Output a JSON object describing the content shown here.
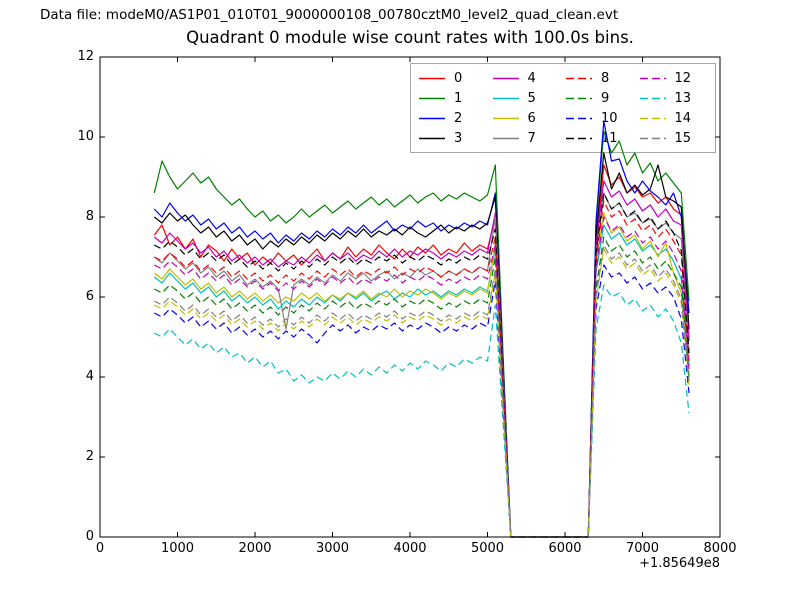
{
  "header": {
    "label": "Data file: modeM0/AS1P01_010T01_9000000108_00780cztM0_level2_quad_clean.evt"
  },
  "chart_data": {
    "type": "line",
    "title": "Quadrant 0 module wise count rates with 100.0s bins.",
    "xlabel": "",
    "ylabel": "",
    "x_offset_label": "+1.85649e8",
    "xlim": [
      0,
      8000
    ],
    "ylim": [
      0,
      12
    ],
    "x_ticks": [
      0,
      1000,
      2000,
      3000,
      4000,
      5000,
      6000,
      7000,
      8000
    ],
    "y_ticks": [
      0,
      2,
      4,
      6,
      8,
      10,
      12
    ],
    "grid": false,
    "legend_position": "upper right, 4 columns",
    "x_start": 700,
    "x_step": 100,
    "series": [
      {
        "name": "0",
        "color": "#ff0000",
        "style": "solid",
        "values": [
          7.55,
          7.8,
          7.3,
          7.5,
          7.2,
          7.45,
          7.0,
          7.3,
          7.15,
          6.9,
          7.2,
          6.95,
          7.1,
          6.8,
          7.0,
          6.85,
          7.1,
          6.9,
          7.05,
          6.8,
          7.0,
          7.2,
          6.9,
          7.1,
          6.95,
          7.25,
          7.0,
          7.2,
          7.05,
          7.3,
          7.1,
          6.95,
          7.2,
          7.0,
          7.25,
          7.1,
          7.3,
          7.05,
          7.2,
          7.1,
          7.35,
          7.15,
          7.3,
          7.2,
          8.0,
          4.0,
          0,
          0,
          0,
          0,
          0,
          0,
          0,
          0,
          0,
          0,
          0,
          7.2,
          9.3,
          8.8,
          9.0,
          8.6,
          8.75,
          8.5,
          8.6,
          8.35,
          8.5,
          8.2,
          8.05,
          5.0
        ]
      },
      {
        "name": "1",
        "color": "#008000",
        "style": "solid",
        "values": [
          8.6,
          9.4,
          9.0,
          8.7,
          8.9,
          9.1,
          8.85,
          9.0,
          8.7,
          8.5,
          8.3,
          8.45,
          8.2,
          8.0,
          8.15,
          7.9,
          8.05,
          7.85,
          8.0,
          8.2,
          8.0,
          8.15,
          8.3,
          8.1,
          8.25,
          8.4,
          8.2,
          8.35,
          8.5,
          8.3,
          8.45,
          8.25,
          8.4,
          8.55,
          8.35,
          8.5,
          8.6,
          8.4,
          8.55,
          8.45,
          8.6,
          8.5,
          8.4,
          8.55,
          9.3,
          4.6,
          0,
          0,
          0,
          0,
          0,
          0,
          0,
          0,
          0,
          0,
          0,
          7.8,
          10.15,
          9.6,
          9.9,
          9.3,
          9.6,
          9.1,
          9.35,
          8.9,
          9.1,
          8.85,
          8.6,
          5.9
        ]
      },
      {
        "name": "2",
        "color": "#0000ff",
        "style": "solid",
        "values": [
          8.2,
          8.0,
          8.35,
          8.1,
          7.9,
          8.05,
          7.8,
          7.95,
          7.7,
          7.85,
          7.6,
          7.75,
          7.5,
          7.65,
          7.45,
          7.6,
          7.35,
          7.55,
          7.4,
          7.6,
          7.45,
          7.65,
          7.5,
          7.7,
          7.55,
          7.75,
          7.6,
          7.8,
          7.6,
          7.75,
          7.9,
          7.65,
          7.8,
          7.7,
          7.9,
          7.75,
          7.85,
          7.65,
          7.8,
          7.7,
          7.85,
          7.75,
          7.9,
          7.8,
          8.6,
          4.3,
          0,
          0,
          0,
          0,
          0,
          0,
          0,
          0,
          0,
          0,
          0,
          7.9,
          10.4,
          9.4,
          9.45,
          8.9,
          8.6,
          8.9,
          8.65,
          8.5,
          8.3,
          8.6,
          8.0,
          5.6
        ]
      },
      {
        "name": "3",
        "color": "#000000",
        "style": "solid",
        "values": [
          8.0,
          7.85,
          8.1,
          7.9,
          8.05,
          7.8,
          7.6,
          7.75,
          7.5,
          7.65,
          7.4,
          7.55,
          7.3,
          7.45,
          7.2,
          7.4,
          7.25,
          7.45,
          7.3,
          7.5,
          7.35,
          7.55,
          7.4,
          7.6,
          7.45,
          7.65,
          7.5,
          7.7,
          7.5,
          7.65,
          7.55,
          7.7,
          7.55,
          7.75,
          7.6,
          7.5,
          7.65,
          7.8,
          7.6,
          7.75,
          7.65,
          7.8,
          7.7,
          7.85,
          8.5,
          4.2,
          0,
          0,
          0,
          0,
          0,
          0,
          0,
          0,
          0,
          0,
          0,
          7.5,
          9.6,
          8.7,
          9.1,
          8.6,
          8.8,
          8.55,
          8.7,
          9.3,
          8.5,
          8.4,
          8.25,
          5.2
        ]
      },
      {
        "name": "4",
        "color": "#bf00bf",
        "style": "solid",
        "values": [
          7.5,
          7.35,
          7.6,
          7.4,
          7.2,
          7.35,
          7.1,
          7.25,
          7.0,
          7.15,
          6.9,
          7.05,
          6.85,
          7.0,
          6.8,
          6.95,
          6.75,
          6.9,
          6.8,
          7.0,
          6.85,
          7.05,
          6.9,
          7.1,
          6.95,
          7.1,
          6.9,
          7.05,
          6.95,
          7.15,
          7.0,
          7.2,
          7.0,
          7.15,
          7.05,
          7.2,
          7.1,
          6.95,
          7.1,
          7.0,
          7.15,
          7.05,
          7.2,
          7.1,
          8.1,
          4.05,
          0,
          0,
          0,
          0,
          0,
          0,
          0,
          0,
          0,
          0,
          0,
          7.3,
          8.9,
          8.5,
          8.65,
          8.3,
          8.45,
          8.15,
          8.3,
          8.0,
          8.2,
          7.9,
          7.8,
          4.9
        ]
      },
      {
        "name": "5",
        "color": "#00bfbf",
        "style": "solid",
        "values": [
          6.5,
          6.35,
          6.6,
          6.4,
          6.2,
          6.35,
          6.1,
          6.25,
          6.0,
          6.15,
          5.9,
          6.05,
          5.85,
          6.0,
          5.8,
          5.95,
          5.7,
          5.9,
          5.75,
          5.95,
          5.8,
          6.0,
          5.85,
          6.05,
          5.9,
          6.1,
          5.95,
          6.1,
          5.9,
          6.05,
          6.15,
          5.95,
          6.1,
          6.0,
          6.2,
          6.05,
          6.15,
          6.0,
          6.15,
          6.05,
          6.2,
          6.1,
          6.25,
          6.15,
          7.2,
          3.6,
          0,
          0,
          0,
          0,
          0,
          0,
          0,
          0,
          0,
          0,
          0,
          6.6,
          7.8,
          7.45,
          7.6,
          7.3,
          7.45,
          7.15,
          7.3,
          7.05,
          7.2,
          6.9,
          6.45,
          4.3
        ]
      },
      {
        "name": "6",
        "color": "#bfbf00",
        "style": "solid",
        "values": [
          6.6,
          6.45,
          6.7,
          6.5,
          6.3,
          6.45,
          6.2,
          6.35,
          6.1,
          6.25,
          6.0,
          6.15,
          5.95,
          6.1,
          5.9,
          6.05,
          5.85,
          6.0,
          5.9,
          6.1,
          5.95,
          6.1,
          5.9,
          6.05,
          5.95,
          6.1,
          6.0,
          6.15,
          5.95,
          6.1,
          6.0,
          6.2,
          6.0,
          6.15,
          6.05,
          6.2,
          6.1,
          5.95,
          6.1,
          6.0,
          6.15,
          6.05,
          6.2,
          6.1,
          7.3,
          3.65,
          0,
          0,
          0,
          0,
          0,
          0,
          0,
          0,
          0,
          0,
          0,
          6.8,
          8.1,
          7.6,
          7.75,
          7.4,
          7.55,
          7.2,
          7.4,
          7.0,
          7.35,
          6.6,
          6.1,
          4.5
        ]
      },
      {
        "name": "7",
        "color": "#808080",
        "style": "solid",
        "values": [
          7.0,
          6.85,
          7.1,
          6.9,
          6.7,
          6.85,
          6.6,
          6.75,
          6.5,
          6.65,
          6.4,
          6.55,
          6.3,
          6.45,
          6.25,
          6.4,
          6.2,
          5.2,
          6.3,
          6.45,
          6.3,
          6.5,
          6.35,
          6.55,
          6.4,
          6.6,
          6.45,
          6.6,
          6.4,
          6.55,
          6.65,
          6.45,
          6.6,
          6.5,
          6.7,
          6.55,
          6.65,
          6.5,
          6.65,
          6.55,
          6.7,
          6.6,
          6.75,
          6.65,
          8.0,
          4.0,
          0,
          0,
          0,
          0,
          0,
          0,
          0,
          0,
          0,
          0,
          0,
          7.0,
          8.6,
          8.2,
          8.35,
          8.0,
          8.1,
          7.85,
          7.95,
          7.7,
          7.85,
          7.6,
          7.45,
          4.6
        ]
      },
      {
        "name": "8",
        "color": "#ff0000",
        "style": "dashed",
        "values": [
          7.0,
          6.9,
          7.1,
          6.95,
          6.75,
          6.9,
          6.65,
          6.8,
          6.6,
          6.75,
          6.5,
          6.65,
          6.45,
          6.6,
          6.4,
          6.55,
          6.35,
          6.55,
          6.4,
          6.6,
          6.45,
          6.65,
          6.5,
          6.7,
          6.55,
          6.7,
          6.5,
          6.65,
          6.55,
          6.7,
          6.6,
          6.75,
          6.55,
          6.7,
          6.6,
          6.75,
          6.65,
          6.5,
          6.65,
          6.55,
          6.7,
          6.6,
          6.75,
          6.65,
          7.5,
          3.75,
          0,
          0,
          0,
          0,
          0,
          0,
          0,
          0,
          0,
          0,
          0,
          6.9,
          8.4,
          8.0,
          8.15,
          7.8,
          7.95,
          7.65,
          7.8,
          7.5,
          7.7,
          7.4,
          7.05,
          4.4
        ]
      },
      {
        "name": "9",
        "color": "#008000",
        "style": "dashed",
        "values": [
          6.2,
          6.1,
          6.3,
          6.15,
          5.95,
          6.1,
          5.85,
          6.0,
          5.8,
          5.95,
          5.7,
          5.85,
          5.65,
          5.8,
          5.6,
          5.75,
          5.55,
          5.75,
          5.6,
          5.8,
          5.65,
          5.85,
          5.7,
          5.9,
          5.75,
          5.9,
          5.7,
          5.85,
          5.75,
          5.9,
          5.8,
          5.95,
          5.75,
          5.9,
          5.8,
          5.95,
          5.85,
          5.7,
          5.85,
          5.75,
          5.9,
          5.8,
          5.95,
          5.85,
          7.0,
          3.5,
          0,
          0,
          0,
          0,
          0,
          0,
          0,
          0,
          0,
          0,
          0,
          6.2,
          7.5,
          7.15,
          7.3,
          7.0,
          7.15,
          6.85,
          7.0,
          6.7,
          6.9,
          6.6,
          6.25,
          4.0
        ]
      },
      {
        "name": "10",
        "color": "#0000ff",
        "style": "dashed",
        "values": [
          5.6,
          5.5,
          5.7,
          5.55,
          5.35,
          5.5,
          5.25,
          5.4,
          5.2,
          5.35,
          5.1,
          5.25,
          5.05,
          5.2,
          5.0,
          5.15,
          4.95,
          5.15,
          5.0,
          5.2,
          5.05,
          4.85,
          5.1,
          5.3,
          5.15,
          5.3,
          5.1,
          5.25,
          5.15,
          5.3,
          5.2,
          5.35,
          5.15,
          5.3,
          5.2,
          5.35,
          5.25,
          5.1,
          5.25,
          5.15,
          5.3,
          5.2,
          5.35,
          5.25,
          6.4,
          3.2,
          0,
          0,
          0,
          0,
          0,
          0,
          0,
          0,
          0,
          0,
          0,
          5.7,
          6.8,
          6.5,
          6.6,
          6.35,
          6.5,
          6.2,
          6.35,
          6.1,
          6.25,
          6.0,
          5.45,
          3.6
        ]
      },
      {
        "name": "11",
        "color": "#000000",
        "style": "dashed",
        "values": [
          7.3,
          7.2,
          7.4,
          7.25,
          7.05,
          7.2,
          6.95,
          7.1,
          6.9,
          7.05,
          6.8,
          6.95,
          6.75,
          6.9,
          6.7,
          6.85,
          6.65,
          6.85,
          6.7,
          6.9,
          6.75,
          6.95,
          6.8,
          7.0,
          6.85,
          7.0,
          6.8,
          6.95,
          6.85,
          7.0,
          6.9,
          7.05,
          6.85,
          7.0,
          6.9,
          7.05,
          6.95,
          6.8,
          6.95,
          6.85,
          7.0,
          6.9,
          7.05,
          6.95,
          7.7,
          3.85,
          0,
          0,
          0,
          0,
          0,
          0,
          0,
          0,
          0,
          0,
          0,
          7.1,
          8.6,
          8.2,
          8.35,
          8.0,
          8.15,
          7.85,
          8.0,
          7.7,
          7.9,
          7.6,
          7.15,
          4.6
        ]
      },
      {
        "name": "12",
        "color": "#bf00bf",
        "style": "dashed",
        "values": [
          6.8,
          6.7,
          6.9,
          6.75,
          6.55,
          6.7,
          6.45,
          6.6,
          6.4,
          6.55,
          6.3,
          6.45,
          6.25,
          6.4,
          6.2,
          6.35,
          6.15,
          6.35,
          6.2,
          6.4,
          6.25,
          6.45,
          6.3,
          6.5,
          6.35,
          6.5,
          6.3,
          6.45,
          6.35,
          6.5,
          6.4,
          6.55,
          6.35,
          6.5,
          6.4,
          6.55,
          6.45,
          6.3,
          6.45,
          6.35,
          6.5,
          6.4,
          6.55,
          6.45,
          7.3,
          3.65,
          0,
          0,
          0,
          0,
          0,
          0,
          0,
          0,
          0,
          0,
          0,
          6.7,
          8.0,
          7.65,
          7.8,
          7.5,
          7.65,
          7.35,
          7.5,
          7.2,
          7.4,
          7.1,
          6.65,
          4.2
        ]
      },
      {
        "name": "13",
        "color": "#00bfbf",
        "style": "dashed",
        "values": [
          5.1,
          5.0,
          5.2,
          5.0,
          4.8,
          4.95,
          4.7,
          4.85,
          4.6,
          4.75,
          4.5,
          4.6,
          4.35,
          4.5,
          4.25,
          4.4,
          4.1,
          4.2,
          3.9,
          4.05,
          3.85,
          4.0,
          3.9,
          4.1,
          3.95,
          4.15,
          4.0,
          4.2,
          4.05,
          4.25,
          4.1,
          4.3,
          4.15,
          4.35,
          4.2,
          4.4,
          4.3,
          4.15,
          4.35,
          4.25,
          4.45,
          4.35,
          4.5,
          4.4,
          5.8,
          2.9,
          0,
          0,
          0,
          0,
          0,
          0,
          0,
          0,
          0,
          0,
          0,
          5.2,
          6.3,
          6.0,
          6.1,
          5.8,
          5.95,
          5.65,
          5.8,
          5.5,
          5.7,
          5.4,
          4.85,
          3.1
        ]
      },
      {
        "name": "14",
        "color": "#bfbf00",
        "style": "dashed",
        "values": [
          5.8,
          5.7,
          5.9,
          5.75,
          5.55,
          5.7,
          5.45,
          5.6,
          5.4,
          5.55,
          5.3,
          5.45,
          5.25,
          5.4,
          5.2,
          5.35,
          5.15,
          5.35,
          5.2,
          5.4,
          5.25,
          5.45,
          5.3,
          5.5,
          5.35,
          5.5,
          5.3,
          5.45,
          5.35,
          5.5,
          5.4,
          5.55,
          5.35,
          5.5,
          5.4,
          5.55,
          5.45,
          5.3,
          5.45,
          5.35,
          5.5,
          5.4,
          5.55,
          5.45,
          6.6,
          3.3,
          0,
          0,
          0,
          0,
          0,
          0,
          0,
          0,
          0,
          0,
          0,
          5.9,
          7.2,
          6.85,
          7.0,
          6.7,
          6.85,
          6.55,
          6.7,
          6.4,
          6.6,
          6.3,
          5.85,
          3.8
        ]
      },
      {
        "name": "15",
        "color": "#808080",
        "style": "dashed",
        "values": [
          5.9,
          5.8,
          6.0,
          5.85,
          5.65,
          5.8,
          5.55,
          5.7,
          5.5,
          5.65,
          5.4,
          5.55,
          5.35,
          5.5,
          5.3,
          5.45,
          5.25,
          5.45,
          5.3,
          5.5,
          5.35,
          5.55,
          5.4,
          5.6,
          5.45,
          5.6,
          5.4,
          5.55,
          5.45,
          5.6,
          5.5,
          5.65,
          5.45,
          5.6,
          5.5,
          5.65,
          5.55,
          5.4,
          5.55,
          5.45,
          5.6,
          5.5,
          5.65,
          5.55,
          6.7,
          3.35,
          0,
          0,
          0,
          0,
          0,
          0,
          0,
          0,
          0,
          0,
          0,
          6.0,
          7.3,
          6.95,
          7.1,
          6.8,
          6.95,
          6.65,
          6.8,
          6.5,
          6.7,
          6.4,
          5.95,
          3.9
        ]
      }
    ]
  }
}
